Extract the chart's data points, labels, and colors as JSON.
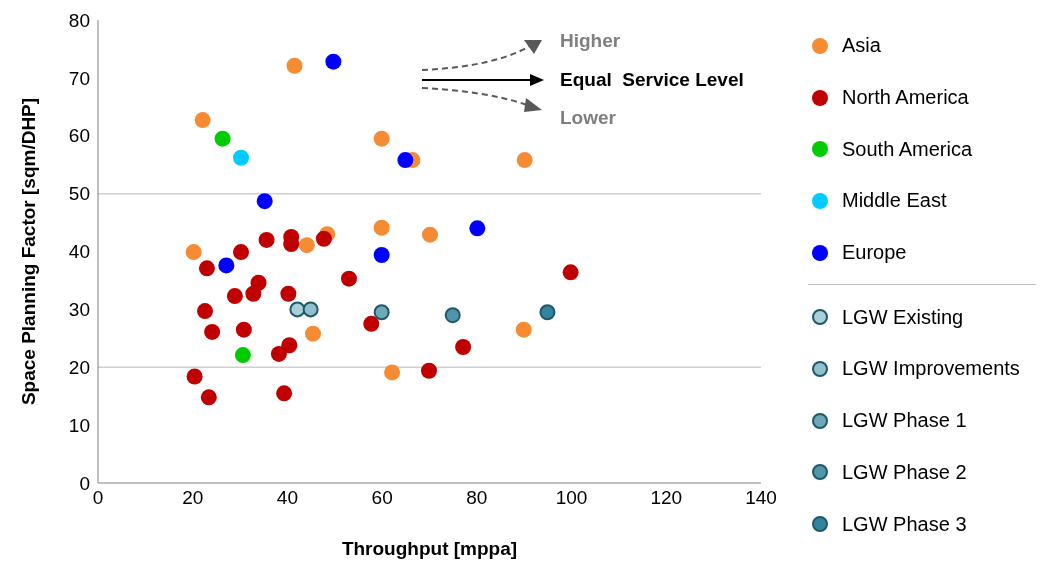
{
  "chart_data": {
    "type": "scatter",
    "xlabel": "Throughput [mppa]",
    "ylabel": "Space Planning Factor [sqm/DHP]",
    "xlim": [
      0,
      140
    ],
    "xticks": [
      0,
      20,
      40,
      60,
      80,
      100,
      120,
      140
    ],
    "ylim": [
      0,
      80
    ],
    "yticks": [
      0,
      10,
      20,
      30,
      40,
      50,
      60,
      70,
      80
    ],
    "marker": "circle",
    "legend": "right",
    "annotations": [
      "Higher",
      "Equal  Service Level",
      "Lower"
    ],
    "ref_lines": [
      {
        "axis": "y",
        "value": 20,
        "color": "#d0d0d0"
      },
      {
        "axis": "y",
        "value": 50,
        "color": "#d0d0d0"
      }
    ],
    "series": [
      {
        "name": "Asia",
        "color": "#f58b33",
        "x": [
          41.5,
          22.1,
          59.9,
          66.4,
          90.1,
          20.2,
          59.9,
          70.1,
          48.4,
          44.1,
          45.4,
          62.1,
          89.9
        ],
        "values": [
          72.1,
          62.7,
          59.5,
          55.8,
          55.8,
          39.9,
          44.1,
          42.9,
          43.0,
          41.1,
          25.8,
          19.1,
          26.5
        ]
      },
      {
        "name": "North America",
        "color": "#c00000",
        "x": [
          35.6,
          40.8,
          40.8,
          47.7,
          30.2,
          23.0,
          53.0,
          33.9,
          28.9,
          32.8,
          40.2,
          22.6,
          24.1,
          30.8,
          57.7,
          40.4,
          38.2,
          77.1,
          69.9,
          20.4,
          23.4,
          39.3,
          99.8
        ],
        "values": [
          42.0,
          42.5,
          41.3,
          42.2,
          39.9,
          37.1,
          35.3,
          34.6,
          32.3,
          32.7,
          32.7,
          29.7,
          26.1,
          26.5,
          27.5,
          23.8,
          22.3,
          23.5,
          19.4,
          18.4,
          14.8,
          15.5,
          36.4
        ]
      },
      {
        "name": "South America",
        "color": "#00cc00",
        "x": [
          26.3,
          30.6
        ],
        "values": [
          59.5,
          22.1
        ]
      },
      {
        "name": "Middle East",
        "color": "#00ccff",
        "x": [
          30.2
        ],
        "values": [
          56.2
        ]
      },
      {
        "name": "Europe",
        "color": "#0000ff",
        "x": [
          49.7,
          64.9,
          35.2,
          27.1,
          59.9,
          80.1
        ],
        "values": [
          72.8,
          55.8,
          48.7,
          37.6,
          39.4,
          44.0
        ]
      },
      {
        "name": "LGW Existing",
        "color": "#a9cfd9",
        "x": [
          42.1
        ],
        "values": [
          30.0
        ]
      },
      {
        "name": "LGW Improvements",
        "color": "#8fc0cc",
        "x": [
          44.9
        ],
        "values": [
          30.0
        ]
      },
      {
        "name": "LGW Phase 1",
        "color": "#6fa8b8",
        "x": [
          59.9
        ],
        "values": [
          29.5
        ]
      },
      {
        "name": "LGW Phase 2",
        "color": "#4f97a8",
        "x": [
          74.9
        ],
        "values": [
          29.0
        ]
      },
      {
        "name": "LGW Phase 3",
        "color": "#31849b",
        "x": [
          94.9
        ],
        "values": [
          29.5
        ]
      }
    ]
  }
}
